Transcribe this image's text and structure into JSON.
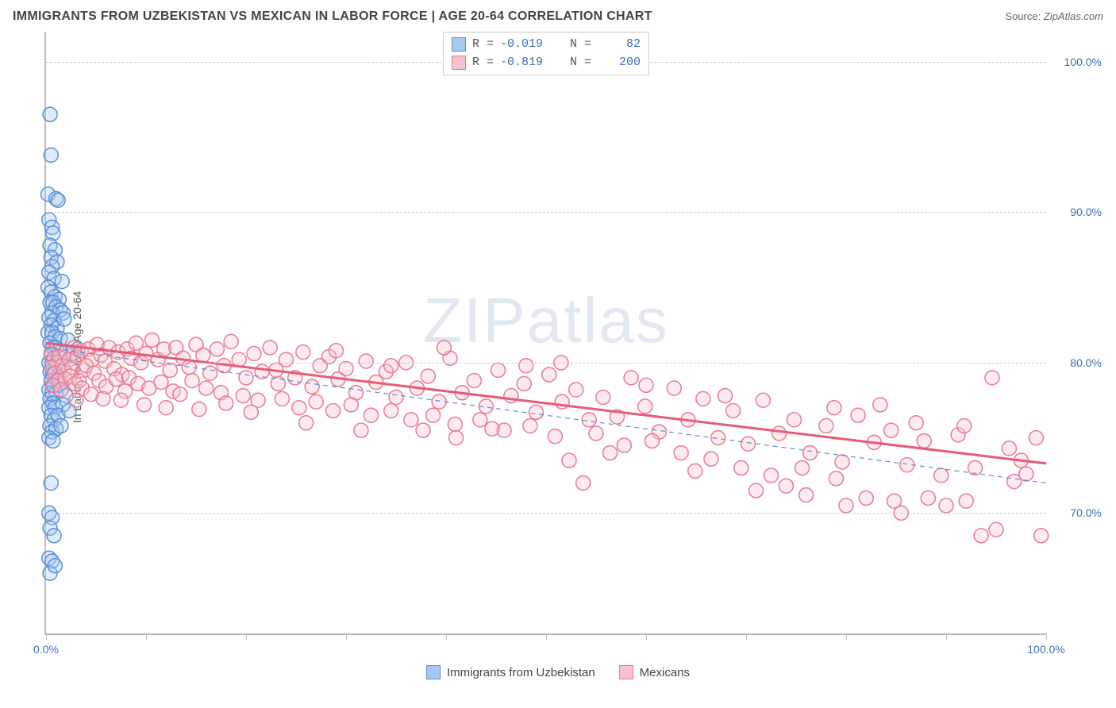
{
  "header": {
    "title": "IMMIGRANTS FROM UZBEKISTAN VS MEXICAN IN LABOR FORCE | AGE 20-64 CORRELATION CHART",
    "source_label": "Source:",
    "source_value": "ZipAtlas.com"
  },
  "chart": {
    "type": "scatter",
    "ylabel": "In Labor Force | Age 20-64",
    "watermark": "ZIPatlas",
    "background_color": "#ffffff",
    "grid_color": "#cccccc",
    "axis_color": "#bbbbbb",
    "tick_label_color": "#3b6fb6",
    "xlim": [
      0,
      100
    ],
    "ylim": [
      62,
      102
    ],
    "xticks": [
      0,
      10,
      20,
      30,
      40,
      50,
      60,
      70,
      80,
      90,
      100
    ],
    "xtick_labels": {
      "0": "0.0%",
      "100": "100.0%"
    },
    "yticks": [
      70,
      80,
      90,
      100
    ],
    "ytick_labels": {
      "70": "70.0%",
      "80": "80.0%",
      "90": "90.0%",
      "100": "100.0%"
    },
    "marker_radius": 9,
    "marker_stroke_width": 1.5,
    "marker_fill_opacity": 0.35,
    "series": [
      {
        "id": "uzbekistan",
        "label": "Immigrants from Uzbekistan",
        "color_fill": "#a7c8f0",
        "color_stroke": "#5a8fd6",
        "R": "-0.019",
        "N": "82",
        "regression": {
          "x1": 0,
          "y1": 81.0,
          "x2": 100,
          "y2": 72.0,
          "stroke": "#5a8fd6",
          "width": 1.2,
          "dash": "6,5"
        },
        "points": [
          [
            0.4,
            96.5
          ],
          [
            0.5,
            93.8
          ],
          [
            0.2,
            91.2
          ],
          [
            1.0,
            90.9
          ],
          [
            1.2,
            90.8
          ],
          [
            0.3,
            89.5
          ],
          [
            0.6,
            89.0
          ],
          [
            0.7,
            88.6
          ],
          [
            0.4,
            87.8
          ],
          [
            0.9,
            87.5
          ],
          [
            0.5,
            87.0
          ],
          [
            1.1,
            86.7
          ],
          [
            0.6,
            86.4
          ],
          [
            0.3,
            86.0
          ],
          [
            0.8,
            85.6
          ],
          [
            1.6,
            85.4
          ],
          [
            0.2,
            85.0
          ],
          [
            0.5,
            84.7
          ],
          [
            0.9,
            84.4
          ],
          [
            1.3,
            84.2
          ],
          [
            0.4,
            84.0
          ],
          [
            0.7,
            84.0
          ],
          [
            1.0,
            83.7
          ],
          [
            1.4,
            83.5
          ],
          [
            0.6,
            83.3
          ],
          [
            0.3,
            83.0
          ],
          [
            1.7,
            83.3
          ],
          [
            0.8,
            82.8
          ],
          [
            0.5,
            82.5
          ],
          [
            1.1,
            82.3
          ],
          [
            0.2,
            82.0
          ],
          [
            0.6,
            82.0
          ],
          [
            0.9,
            81.7
          ],
          [
            1.4,
            81.6
          ],
          [
            2.2,
            81.5
          ],
          [
            0.4,
            81.3
          ],
          [
            0.7,
            81.0
          ],
          [
            1.0,
            81.0
          ],
          [
            1.3,
            80.8
          ],
          [
            1.8,
            82.9
          ],
          [
            0.5,
            80.5
          ],
          [
            0.8,
            80.3
          ],
          [
            0.3,
            80.0
          ],
          [
            0.6,
            80.0
          ],
          [
            1.0,
            79.8
          ],
          [
            1.5,
            80.3
          ],
          [
            2.6,
            80.5
          ],
          [
            3.2,
            80.9
          ],
          [
            0.4,
            79.4
          ],
          [
            0.7,
            79.2
          ],
          [
            1.2,
            79.1
          ],
          [
            0.5,
            78.8
          ],
          [
            0.8,
            78.5
          ],
          [
            0.3,
            78.2
          ],
          [
            0.6,
            78.0
          ],
          [
            1.0,
            78.0
          ],
          [
            1.3,
            78.5
          ],
          [
            0.4,
            77.6
          ],
          [
            0.7,
            77.3
          ],
          [
            2.0,
            77.8
          ],
          [
            0.3,
            77.0
          ],
          [
            0.9,
            77.0
          ],
          [
            1.7,
            77.2
          ],
          [
            0.5,
            76.5
          ],
          [
            0.8,
            76.2
          ],
          [
            1.2,
            76.5
          ],
          [
            2.3,
            76.8
          ],
          [
            0.4,
            75.8
          ],
          [
            0.6,
            75.4
          ],
          [
            1.0,
            75.6
          ],
          [
            1.5,
            75.8
          ],
          [
            0.3,
            75.0
          ],
          [
            0.7,
            74.8
          ],
          [
            0.5,
            72.0
          ],
          [
            0.3,
            70.0
          ],
          [
            0.6,
            69.7
          ],
          [
            0.4,
            69.0
          ],
          [
            0.8,
            68.5
          ],
          [
            0.3,
            67.0
          ],
          [
            0.6,
            66.8
          ],
          [
            0.4,
            66.0
          ],
          [
            0.9,
            66.5
          ]
        ]
      },
      {
        "id": "mexicans",
        "label": "Mexicans",
        "color_fill": "#f7c2cd",
        "color_stroke": "#e87b93",
        "R": "-0.819",
        "N": "200",
        "regression": {
          "x1": 0,
          "y1": 81.3,
          "x2": 100,
          "y2": 73.3,
          "stroke": "#e85a78",
          "width": 3,
          "dash": null
        },
        "points": [
          [
            0.5,
            80.6
          ],
          [
            0.8,
            80.3
          ],
          [
            1.1,
            80.0
          ],
          [
            0.6,
            79.7
          ],
          [
            1.3,
            80.4
          ],
          [
            1.6,
            79.8
          ],
          [
            0.9,
            79.3
          ],
          [
            1.4,
            79.0
          ],
          [
            2.0,
            80.7
          ],
          [
            1.8,
            79.5
          ],
          [
            1.2,
            78.8
          ],
          [
            0.7,
            78.5
          ],
          [
            2.3,
            80.2
          ],
          [
            2.6,
            79.7
          ],
          [
            1.9,
            78.9
          ],
          [
            2.8,
            81.0
          ],
          [
            3.1,
            80.4
          ],
          [
            2.4,
            79.1
          ],
          [
            3.5,
            80.8
          ],
          [
            3.8,
            79.5
          ],
          [
            2.9,
            78.6
          ],
          [
            1.5,
            78.2
          ],
          [
            4.2,
            80.9
          ],
          [
            4.6,
            80.2
          ],
          [
            3.3,
            78.8
          ],
          [
            4.0,
            79.8
          ],
          [
            5.1,
            81.2
          ],
          [
            5.5,
            80.5
          ],
          [
            4.8,
            79.3
          ],
          [
            5.9,
            80.1
          ],
          [
            3.6,
            78.3
          ],
          [
            6.3,
            81.0
          ],
          [
            6.8,
            79.6
          ],
          [
            5.3,
            78.8
          ],
          [
            7.2,
            80.7
          ],
          [
            7.6,
            79.2
          ],
          [
            6.0,
            78.4
          ],
          [
            8.1,
            80.9
          ],
          [
            8.5,
            80.3
          ],
          [
            7.0,
            78.9
          ],
          [
            9.0,
            81.3
          ],
          [
            9.5,
            80.0
          ],
          [
            8.3,
            79.0
          ],
          [
            10.0,
            80.6
          ],
          [
            10.6,
            81.5
          ],
          [
            9.2,
            78.6
          ],
          [
            11.2,
            80.2
          ],
          [
            7.9,
            78.1
          ],
          [
            11.8,
            80.9
          ],
          [
            12.4,
            79.5
          ],
          [
            10.3,
            78.3
          ],
          [
            13.0,
            81.0
          ],
          [
            13.7,
            80.3
          ],
          [
            11.5,
            78.7
          ],
          [
            14.3,
            79.7
          ],
          [
            12.7,
            78.1
          ],
          [
            15.0,
            81.2
          ],
          [
            15.7,
            80.5
          ],
          [
            14.6,
            78.8
          ],
          [
            16.4,
            79.3
          ],
          [
            13.4,
            77.9
          ],
          [
            17.1,
            80.9
          ],
          [
            17.8,
            79.8
          ],
          [
            16.0,
            78.3
          ],
          [
            18.5,
            81.4
          ],
          [
            19.3,
            80.2
          ],
          [
            20.0,
            79.0
          ],
          [
            17.5,
            78.0
          ],
          [
            20.8,
            80.6
          ],
          [
            21.6,
            79.4
          ],
          [
            19.7,
            77.8
          ],
          [
            22.4,
            81.0
          ],
          [
            23.2,
            78.6
          ],
          [
            24.0,
            80.2
          ],
          [
            21.2,
            77.5
          ],
          [
            24.9,
            79.0
          ],
          [
            25.7,
            80.7
          ],
          [
            23.6,
            77.6
          ],
          [
            26.6,
            78.4
          ],
          [
            27.4,
            79.8
          ],
          [
            25.3,
            77.0
          ],
          [
            28.3,
            80.4
          ],
          [
            29.2,
            78.9
          ],
          [
            27.0,
            77.4
          ],
          [
            30.0,
            79.6
          ],
          [
            31.0,
            78.0
          ],
          [
            28.7,
            76.8
          ],
          [
            32.0,
            80.1
          ],
          [
            33.0,
            78.7
          ],
          [
            30.5,
            77.2
          ],
          [
            34.0,
            79.4
          ],
          [
            35.0,
            77.7
          ],
          [
            32.5,
            76.5
          ],
          [
            36.0,
            80.0
          ],
          [
            37.1,
            78.3
          ],
          [
            34.5,
            76.8
          ],
          [
            38.2,
            79.1
          ],
          [
            39.3,
            77.4
          ],
          [
            36.5,
            76.2
          ],
          [
            40.4,
            80.3
          ],
          [
            41.6,
            78.0
          ],
          [
            38.7,
            76.5
          ],
          [
            42.8,
            78.8
          ],
          [
            39.8,
            81.0
          ],
          [
            44.0,
            77.1
          ],
          [
            40.9,
            75.9
          ],
          [
            45.2,
            79.5
          ],
          [
            46.5,
            77.8
          ],
          [
            43.4,
            76.2
          ],
          [
            47.8,
            78.6
          ],
          [
            49.0,
            76.7
          ],
          [
            45.8,
            75.5
          ],
          [
            50.3,
            79.2
          ],
          [
            51.6,
            77.4
          ],
          [
            48.4,
            75.8
          ],
          [
            53.0,
            78.2
          ],
          [
            54.3,
            76.2
          ],
          [
            50.9,
            75.1
          ],
          [
            51.5,
            80.0
          ],
          [
            55.7,
            77.7
          ],
          [
            53.7,
            72.0
          ],
          [
            57.1,
            76.4
          ],
          [
            58.5,
            79.0
          ],
          [
            55.0,
            75.3
          ],
          [
            59.9,
            77.1
          ],
          [
            61.3,
            75.4
          ],
          [
            57.8,
            74.5
          ],
          [
            62.8,
            78.3
          ],
          [
            64.2,
            76.2
          ],
          [
            60.6,
            74.8
          ],
          [
            65.7,
            77.6
          ],
          [
            67.2,
            75.0
          ],
          [
            63.5,
            74.0
          ],
          [
            68.7,
            76.8
          ],
          [
            70.2,
            74.6
          ],
          [
            66.5,
            73.6
          ],
          [
            71.7,
            77.5
          ],
          [
            73.3,
            75.3
          ],
          [
            69.5,
            73.0
          ],
          [
            74.8,
            76.2
          ],
          [
            76.4,
            74.0
          ],
          [
            72.5,
            72.5
          ],
          [
            78.0,
            75.8
          ],
          [
            74.0,
            71.8
          ],
          [
            79.6,
            73.4
          ],
          [
            76.0,
            71.2
          ],
          [
            81.2,
            76.5
          ],
          [
            82.8,
            74.7
          ],
          [
            79.0,
            72.3
          ],
          [
            84.5,
            75.5
          ],
          [
            80.0,
            70.5
          ],
          [
            86.1,
            73.2
          ],
          [
            82.0,
            71.0
          ],
          [
            87.8,
            74.8
          ],
          [
            89.5,
            72.5
          ],
          [
            84.8,
            70.8
          ],
          [
            91.2,
            75.2
          ],
          [
            85.5,
            70.0
          ],
          [
            92.9,
            73.0
          ],
          [
            94.6,
            79.0
          ],
          [
            88.2,
            71.0
          ],
          [
            96.3,
            74.3
          ],
          [
            90.0,
            70.5
          ],
          [
            98.0,
            72.6
          ],
          [
            92.0,
            70.8
          ],
          [
            99.0,
            75.0
          ],
          [
            95.0,
            68.9
          ],
          [
            97.5,
            73.5
          ],
          [
            93.5,
            68.5
          ],
          [
            99.5,
            68.5
          ],
          [
            96.8,
            72.1
          ],
          [
            91.8,
            75.8
          ],
          [
            87.0,
            76.0
          ],
          [
            83.4,
            77.2
          ],
          [
            78.8,
            77.0
          ],
          [
            75.6,
            73.0
          ],
          [
            71.0,
            71.5
          ],
          [
            67.9,
            77.8
          ],
          [
            64.9,
            72.8
          ],
          [
            60.0,
            78.5
          ],
          [
            56.4,
            74.0
          ],
          [
            52.3,
            73.5
          ],
          [
            48.0,
            79.8
          ],
          [
            44.6,
            75.6
          ],
          [
            41.0,
            75.0
          ],
          [
            37.7,
            75.5
          ],
          [
            34.5,
            79.8
          ],
          [
            31.5,
            75.5
          ],
          [
            29.0,
            80.8
          ],
          [
            26.0,
            76.0
          ],
          [
            23.0,
            79.5
          ],
          [
            20.5,
            76.7
          ],
          [
            18.0,
            77.3
          ],
          [
            15.3,
            76.9
          ],
          [
            12.0,
            77.0
          ],
          [
            9.8,
            77.2
          ],
          [
            7.5,
            77.5
          ],
          [
            5.7,
            77.6
          ],
          [
            4.5,
            77.9
          ],
          [
            3.0,
            77.5
          ]
        ]
      }
    ]
  },
  "legend_stats": {
    "R_label": "R =",
    "N_label": "N ="
  }
}
